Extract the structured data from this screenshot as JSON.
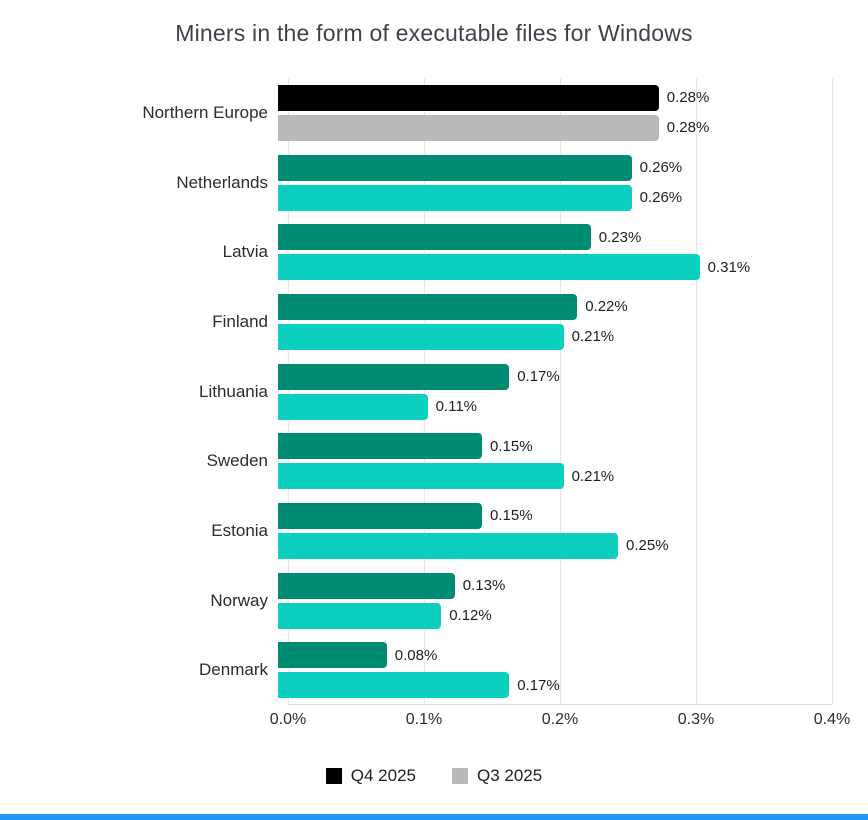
{
  "page": {
    "background": "#ffffff",
    "accent_bar_color": "#2196f3"
  },
  "chart_data": {
    "type": "bar",
    "orientation": "horizontal",
    "title": "Miners in the form of executable files for Windows",
    "categories": [
      "Northern Europe",
      "Netherlands",
      "Latvia",
      "Finland",
      "Lithuania",
      "Sweden",
      "Estonia",
      "Norway",
      "Denmark"
    ],
    "series": [
      {
        "name": "Q4 2025",
        "values": [
          0.28,
          0.26,
          0.23,
          0.22,
          0.17,
          0.15,
          0.15,
          0.13,
          0.08
        ],
        "labels": [
          "0.28%",
          "0.26%",
          "0.23%",
          "0.22%",
          "0.17%",
          "0.15%",
          "0.15%",
          "0.13%",
          "0.08%"
        ],
        "color": "#008c72",
        "highlight_color": "#000000"
      },
      {
        "name": "Q3 2025",
        "values": [
          0.28,
          0.26,
          0.31,
          0.21,
          0.11,
          0.21,
          0.25,
          0.12,
          0.17
        ],
        "labels": [
          "0.28%",
          "0.26%",
          "0.31%",
          "0.21%",
          "0.11%",
          "0.21%",
          "0.25%",
          "0.12%",
          "0.17%"
        ],
        "color": "#0bcfbf",
        "highlight_color": "#b9b9b9"
      }
    ],
    "highlight_category": "Northern Europe",
    "xlim": [
      0,
      0.4
    ],
    "x_ticks": [
      {
        "value": 0.0,
        "label": "0.0%"
      },
      {
        "value": 0.1,
        "label": "0.1%"
      },
      {
        "value": 0.2,
        "label": "0.2%"
      },
      {
        "value": 0.3,
        "label": "0.3%"
      },
      {
        "value": 0.4,
        "label": "0.4%"
      }
    ],
    "grid": true,
    "legend_position": "bottom"
  }
}
